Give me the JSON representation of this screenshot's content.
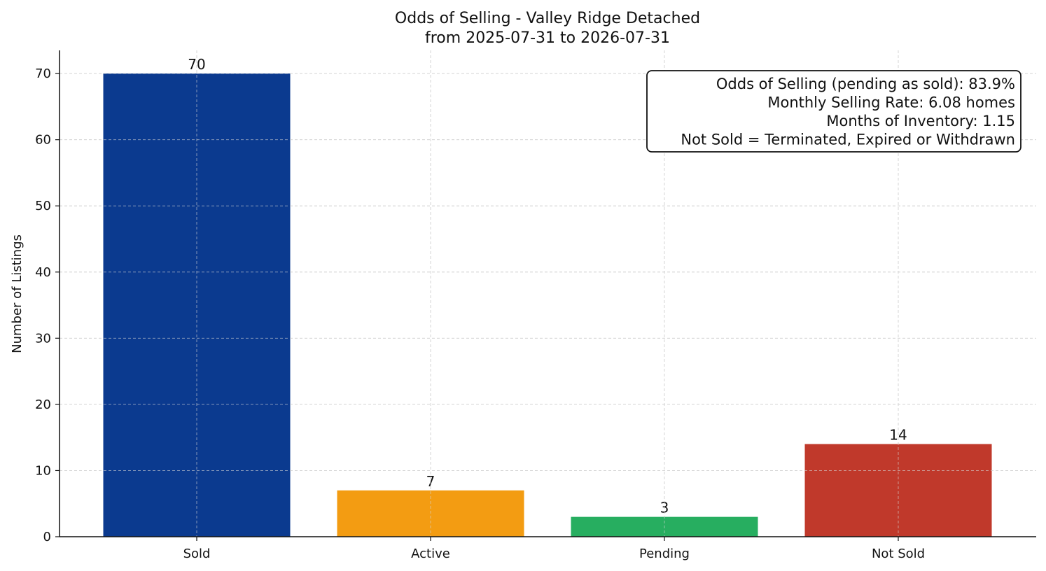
{
  "chart_data": {
    "type": "bar",
    "title": "Odds of Selling - Valley Ridge Detached",
    "subtitle": "from 2025-07-31 to 2026-07-31",
    "xlabel": "",
    "ylabel": "Number of Listings",
    "categories": [
      "Sold",
      "Active",
      "Pending",
      "Not Sold"
    ],
    "values": [
      70,
      7,
      3,
      14
    ],
    "data_labels": [
      "70",
      "7",
      "3",
      "14"
    ],
    "colors": [
      "#0b3a8f",
      "#f39c12",
      "#27ae60",
      "#c0392b"
    ],
    "ylim": [
      0,
      73.5
    ],
    "yticks": [
      0,
      10,
      20,
      30,
      40,
      50,
      60,
      70
    ],
    "grid": true,
    "legend": null,
    "annotation_box": {
      "placement": "top-right",
      "lines": [
        "Odds of Selling (pending as sold): 83.9%",
        "Monthly Selling Rate: 6.08 homes",
        "Months of Inventory: 1.15",
        "Not Sold = Terminated, Expired or Withdrawn"
      ]
    }
  }
}
